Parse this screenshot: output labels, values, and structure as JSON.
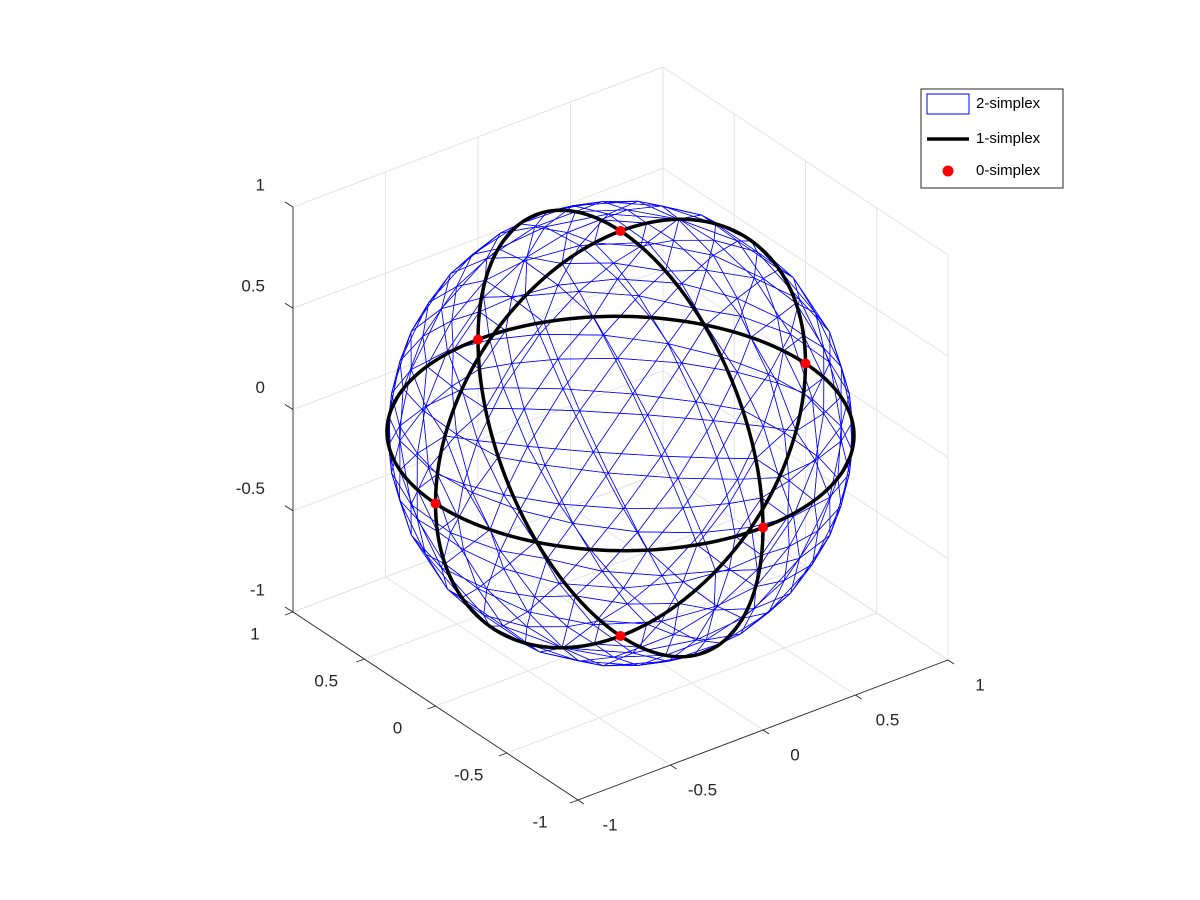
{
  "chart_data": {
    "type": "mesh3d",
    "xlim": [
      -1,
      1
    ],
    "ylim": [
      -1,
      1
    ],
    "zlim": [
      -1,
      1
    ],
    "xticks": [
      -1,
      -0.5,
      0,
      0.5,
      1
    ],
    "yticks": [
      -1,
      -0.5,
      0,
      0.5,
      1
    ],
    "zticks": [
      -1,
      -0.5,
      0,
      0.5,
      1
    ],
    "grid": true,
    "legend": "upper right",
    "series": [
      {
        "name": "2-simplex",
        "color": "#0000ff"
      },
      {
        "name": "1-simplex",
        "color": "#000000"
      },
      {
        "name": "0-simplex",
        "color": "#ff0000",
        "x": [
          0,
          0,
          1,
          -1,
          0,
          0
        ],
        "y": [
          0,
          0,
          0,
          0,
          1,
          -1
        ],
        "z": [
          1,
          -1,
          0,
          0,
          0,
          0
        ]
      }
    ]
  }
}
